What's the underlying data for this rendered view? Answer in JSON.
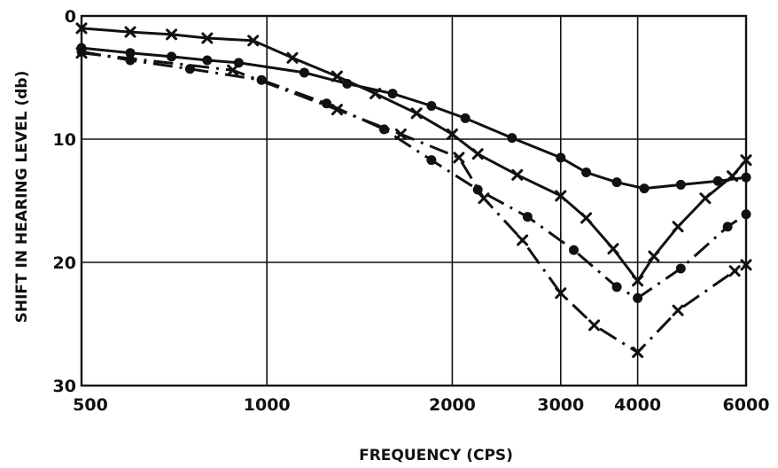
{
  "chart_data": {
    "type": "line",
    "xlabel": "FREQUENCY (CPS)",
    "ylabel": "SHIFT IN HEARING LEVEL (db)",
    "x_scale": "log",
    "xlim": [
      500,
      6000
    ],
    "ylim": [
      0,
      30
    ],
    "y_inverted": true,
    "grid": true,
    "legend": "none",
    "x_ticks": [
      500,
      1000,
      2000,
      3000,
      4000,
      6000
    ],
    "x_tick_labels": [
      "500",
      "1000",
      "2000",
      "3000",
      "4000",
      "6000"
    ],
    "y_ticks": [
      0,
      10,
      20,
      30
    ],
    "y_tick_labels": [
      "0",
      "10",
      "20",
      "30"
    ],
    "series": [
      {
        "line_style": "solid",
        "marker": "dot",
        "x": [
          500,
          600,
          700,
          800,
          900,
          1150,
          1350,
          1600,
          1850,
          2100,
          2500,
          3000,
          3300,
          3700,
          4100,
          4700,
          5400,
          6000
        ],
        "y": [
          2.6,
          3.0,
          3.3,
          3.6,
          3.8,
          4.6,
          5.5,
          6.3,
          7.3,
          8.3,
          9.9,
          11.5,
          12.7,
          13.5,
          14.0,
          13.7,
          13.4,
          13.1
        ]
      },
      {
        "line_style": "solid",
        "marker": "x",
        "x": [
          500,
          600,
          700,
          800,
          950,
          1100,
          1300,
          1500,
          1750,
          2000,
          2200,
          2550,
          3000,
          3300,
          3650,
          4000,
          4250,
          4650,
          5150,
          5700,
          6000
        ],
        "y": [
          1.0,
          1.3,
          1.5,
          1.8,
          2.0,
          3.4,
          4.9,
          6.3,
          7.9,
          9.6,
          11.2,
          12.9,
          14.6,
          16.4,
          18.9,
          21.5,
          19.5,
          17.1,
          14.8,
          13.0,
          11.7
        ]
      },
      {
        "line_style": "dash-dot",
        "marker": "dot",
        "x": [
          500,
          600,
          750,
          980,
          1250,
          1550,
          1850,
          2200,
          2650,
          3150,
          3700,
          4000,
          4700,
          5600,
          6000
        ],
        "y": [
          2.9,
          3.6,
          4.3,
          5.2,
          7.1,
          9.2,
          11.7,
          14.1,
          16.3,
          19.0,
          22.0,
          22.9,
          20.5,
          17.1,
          16.1
        ]
      },
      {
        "line_style": "dash-dot",
        "marker": "x",
        "x": [
          500,
          880,
          1300,
          1650,
          2050,
          2250,
          2600,
          3000,
          3400,
          4000,
          4650,
          5750,
          6000
        ],
        "y": [
          3.0,
          4.4,
          7.6,
          9.6,
          11.5,
          14.8,
          18.2,
          22.5,
          25.1,
          27.3,
          23.9,
          20.7,
          20.2
        ]
      }
    ]
  }
}
